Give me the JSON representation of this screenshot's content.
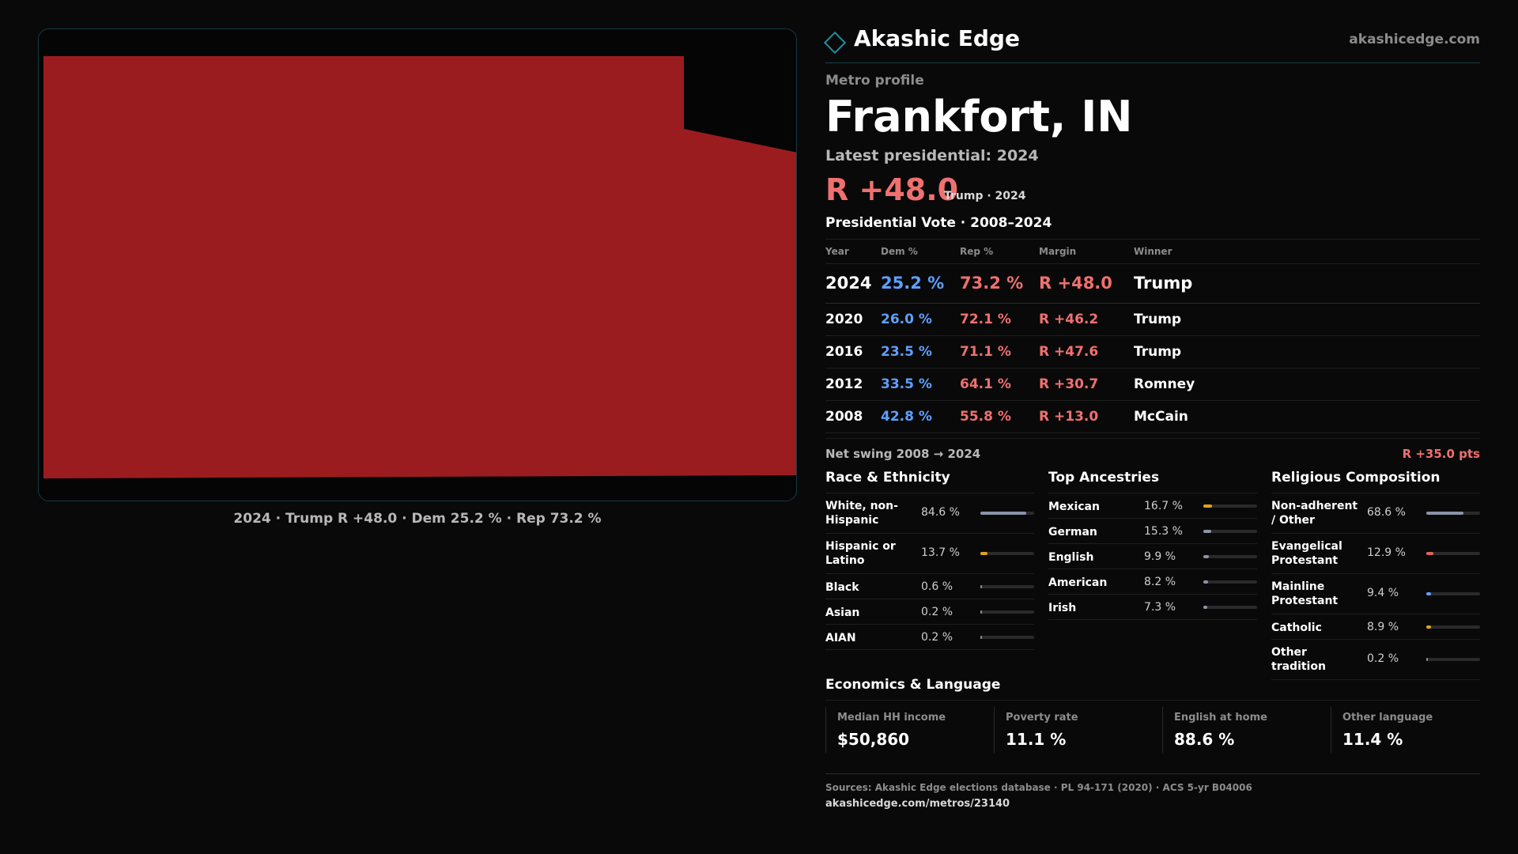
{
  "brand": {
    "name": "Akashic Edge",
    "url": "akashicedge.com"
  },
  "profile": {
    "kicker": "Metro profile",
    "title": "Frankfort, IN",
    "latest_label": "Latest presidential: 2024",
    "latest_margin": "R +48.0",
    "latest_note": "Trump · 2024"
  },
  "map": {
    "fill_color": "#9b1c1f",
    "caption": "2024 · Trump R +48.0 · Dem 25.2 % · Rep 73.2 %"
  },
  "vote_table": {
    "title": "Presidential Vote · 2008–2024",
    "headers": {
      "year": "Year",
      "dem": "Dem %",
      "rep": "Rep %",
      "margin": "Margin",
      "winner": "Winner"
    },
    "rows": [
      {
        "year": "2024",
        "dem": "25.2 %",
        "rep": "73.2 %",
        "margin": "R +48.0",
        "winner": "Trump"
      },
      {
        "year": "2020",
        "dem": "26.0 %",
        "rep": "72.1 %",
        "margin": "R +46.2",
        "winner": "Trump"
      },
      {
        "year": "2016",
        "dem": "23.5 %",
        "rep": "71.1 %",
        "margin": "R +47.6",
        "winner": "Trump"
      },
      {
        "year": "2012",
        "dem": "33.5 %",
        "rep": "64.1 %",
        "margin": "R +30.7",
        "winner": "Romney"
      },
      {
        "year": "2008",
        "dem": "42.8 %",
        "rep": "55.8 %",
        "margin": "R +13.0",
        "winner": "McCain"
      }
    ],
    "swing_label": "Net swing 2008 → 2024",
    "swing_value": "R +35.0 pts"
  },
  "race": {
    "title": "Race & Ethnicity",
    "items": [
      {
        "label": "White, non-Hispanic",
        "value": "84.6 %",
        "pct": 84.6,
        "color": "#8a93a8"
      },
      {
        "label": "Hispanic or Latino",
        "value": "13.7 %",
        "pct": 13.7,
        "color": "#e0a21a"
      },
      {
        "label": "Black",
        "value": "0.6 %",
        "pct": 0.6,
        "color": "#8a93a8"
      },
      {
        "label": "Asian",
        "value": "0.2 %",
        "pct": 0.2,
        "color": "#8a93a8"
      },
      {
        "label": "AIAN",
        "value": "0.2 %",
        "pct": 0.2,
        "color": "#8a93a8"
      }
    ]
  },
  "ancestry": {
    "title": "Top Ancestries",
    "items": [
      {
        "label": "Mexican",
        "value": "16.7 %",
        "pct": 16.7,
        "color": "#e0a21a"
      },
      {
        "label": "German",
        "value": "15.3 %",
        "pct": 15.3,
        "color": "#8a93a8"
      },
      {
        "label": "English",
        "value": "9.9 %",
        "pct": 9.9,
        "color": "#8a93a8"
      },
      {
        "label": "American",
        "value": "8.2 %",
        "pct": 8.2,
        "color": "#8a93a8"
      },
      {
        "label": "Irish",
        "value": "7.3 %",
        "pct": 7.3,
        "color": "#8a93a8"
      }
    ]
  },
  "religion": {
    "title": "Religious Composition",
    "items": [
      {
        "label": "Non-adherent / Other",
        "value": "68.6 %",
        "pct": 68.6,
        "color": "#8a93a8"
      },
      {
        "label": "Evangelical Protestant",
        "value": "12.9 %",
        "pct": 12.9,
        "color": "#e06060"
      },
      {
        "label": "Mainline Protestant",
        "value": "9.4 %",
        "pct": 9.4,
        "color": "#5ea0ff"
      },
      {
        "label": "Catholic",
        "value": "8.9 %",
        "pct": 8.9,
        "color": "#e0a21a"
      },
      {
        "label": "Other tradition",
        "value": "0.2 %",
        "pct": 0.2,
        "color": "#8a93a8"
      }
    ]
  },
  "economics": {
    "title": "Economics & Language",
    "items": [
      {
        "label": "Median HH income",
        "value": "$50,860"
      },
      {
        "label": "Poverty rate",
        "value": "11.1 %"
      },
      {
        "label": "English at home",
        "value": "88.6 %"
      },
      {
        "label": "Other language",
        "value": "11.4 %"
      }
    ]
  },
  "sources": {
    "line": "Sources: Akashic Edge elections database · PL 94-171 (2020) · ACS 5-yr B04006",
    "url": "akashicedge.com/metros/23140"
  }
}
